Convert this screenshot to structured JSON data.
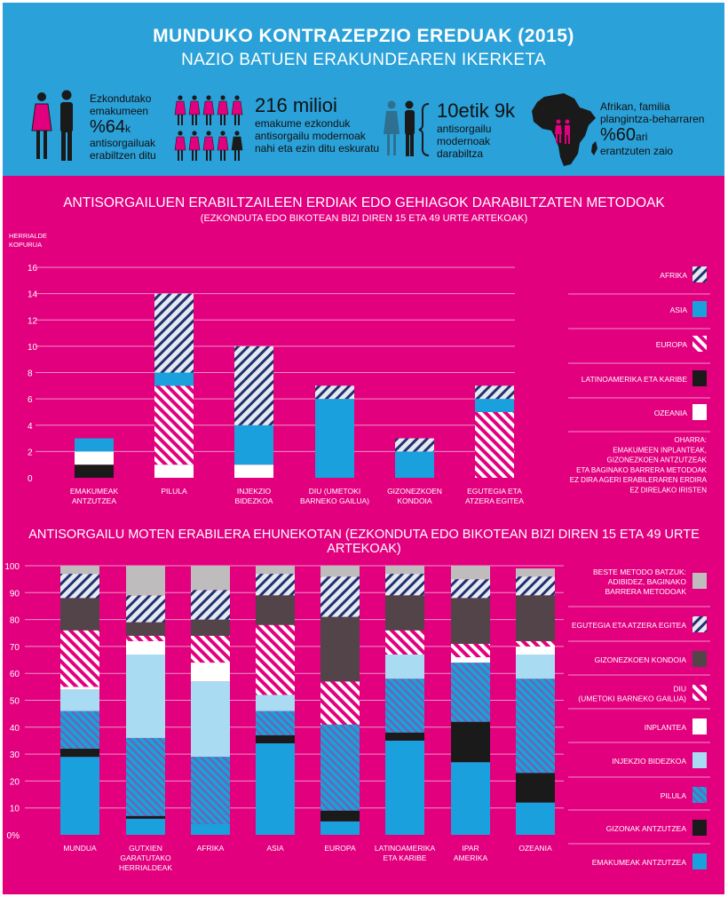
{
  "header": {
    "title": "MUNDUKO KONTRAZEPZIO EREDUAK (2015)",
    "subtitle": "NAZIO BATUEN ERAKUNDEAREN IKERKETA"
  },
  "stats": [
    {
      "lines_before": [
        "Ezkondutako",
        "emakumeen"
      ],
      "big": "%64",
      "suffix": "k",
      "lines_after": [
        "antisorgailuak",
        "erabiltzen ditu"
      ]
    },
    {
      "big": "216 milioi",
      "lines_after": [
        "emakume ezkonduk",
        "antisorgailu modernoak",
        "nahi eta ezin ditu eskuratu"
      ]
    },
    {
      "big": "10etik 9k",
      "lines_after": [
        "antisorgailu",
        "modernoak",
        "darabiltza"
      ]
    },
    {
      "lines_before": [
        "Afrikan, familia",
        "plangintza-beharraren"
      ],
      "big": "%60",
      "suffix": "ari",
      "lines_after": [
        "erantzuten zaio"
      ]
    }
  ],
  "colors": {
    "header_bg": "#2aa1d9",
    "section_bg": "#e3007f",
    "blue": "#1aa0dc",
    "light_blue": "#a9dbf2",
    "dark_gray": "#524449",
    "light_gray": "#bfbcbe",
    "black": "#1a1a1a",
    "white": "#ffffff",
    "hatch_pink": "#e3007f"
  },
  "chart_data": [
    {
      "type": "bar",
      "stacked": true,
      "title": "ANTISORGAILUEN ERABILTZAILEEN ERDIAK EDO GEHIAGOK DARABILTZATEN METODOAK",
      "subtitle": "(EZKONDUTA EDO BIKOTEAN BIZI DIREN 15 ETA 49 URTE ARTEKOAK)",
      "ylabel": [
        "HERRIALDE",
        "KOPURUA"
      ],
      "ylim": [
        0,
        16
      ],
      "yticks": [
        0,
        2,
        4,
        6,
        8,
        10,
        12,
        14,
        16
      ],
      "grid": true,
      "legend_position": "right",
      "categories": [
        [
          "EMAKUMEAK",
          "ANTZUTZEA"
        ],
        [
          "PILULA"
        ],
        [
          "INJEKZIO",
          "BIDEZKOA"
        ],
        [
          "DIU (UMETOKI",
          "BARNEKO GAILUA)"
        ],
        [
          "GIZONEZKOEN",
          "KONDOIA"
        ],
        [
          "EGUTEGIA ETA",
          "ATZERA EGITEA"
        ]
      ],
      "series": [
        {
          "name": "LATINOAMERIKA ETA KARIBE",
          "pattern": "black",
          "values": [
            1,
            0,
            0,
            0,
            0,
            0
          ]
        },
        {
          "name": "OZEANIA",
          "pattern": "white",
          "values": [
            1,
            1,
            1,
            0,
            0,
            0
          ]
        },
        {
          "name": "EUROPA",
          "pattern": "hatch_pink",
          "values": [
            0,
            6,
            0,
            0,
            0,
            5
          ]
        },
        {
          "name": "ASIA",
          "pattern": "blue",
          "values": [
            1,
            1,
            3,
            6,
            2,
            1
          ]
        },
        {
          "name": "AFRIKA",
          "pattern": "hatch_navy",
          "values": [
            0,
            6,
            6,
            1,
            1,
            1
          ]
        }
      ],
      "legend_order": [
        "AFRIKA",
        "ASIA",
        "EUROPA",
        "LATINOAMERIKA ETA KARIBE",
        "OZEANIA"
      ],
      "note": [
        "OHARRA:",
        "EMAKUMEEN INPLANTEAK,",
        "GIZONEZKOEN ANTZUTZEAK",
        "ETA BAGINAKO BARRERA METODOAK",
        "EZ DIRA AGERI ERABILERAREN ERDIRA",
        "EZ DIRELAKO IRISTEN"
      ]
    },
    {
      "type": "bar",
      "stacked": true,
      "title": "ANTISORGAILU MOTEN ERABILERA EHUNEKOTAN",
      "subtitle": "(EZKONDUTA EDO BIKOTEAN BIZI DIREN 15 ETA 49 URTE ARTEKOAK)",
      "ylim": [
        0,
        100
      ],
      "yticks": [
        0,
        10,
        20,
        30,
        40,
        50,
        60,
        70,
        80,
        90,
        100
      ],
      "ytick_labels": [
        "0%",
        "10",
        "20",
        "30",
        "40",
        "50",
        "60",
        "70",
        "80",
        "90",
        "100"
      ],
      "grid": true,
      "legend_position": "right",
      "categories": [
        [
          "MUNDUA"
        ],
        [
          "GUTXIEN",
          "GARATUTAKO",
          "HERRIALDEAK"
        ],
        [
          "AFRIKA"
        ],
        [
          "ASIA"
        ],
        [
          "EUROPA"
        ],
        [
          "LATINOAMERIKA",
          "ETA KARIBE"
        ],
        [
          "IPAR",
          "AMERIKA"
        ],
        [
          "OZEANIA"
        ]
      ],
      "series": [
        {
          "name": "EMAKUMEAK ANTZUTZEA",
          "pattern": "blue",
          "values": [
            29,
            6,
            4,
            34,
            5,
            35,
            27,
            12
          ]
        },
        {
          "name": "GIZONAK ANTZUTZEA",
          "pattern": "black",
          "values": [
            3,
            1,
            0,
            3,
            4,
            3,
            15,
            11
          ]
        },
        {
          "name": "PILULA",
          "pattern": "hatch_blue",
          "values": [
            14,
            29,
            25,
            9,
            32,
            20,
            22,
            35
          ]
        },
        {
          "name": "INJEKZIO BIDEZKOA",
          "pattern": "light_blue",
          "values": [
            8,
            31,
            28,
            6,
            0,
            9,
            0,
            9
          ]
        },
        {
          "name": "INPLANTEA",
          "pattern": "white",
          "values": [
            1,
            5,
            7,
            0,
            0,
            0,
            2,
            3
          ]
        },
        {
          "name": "DIU (UMETOKI BARNEKO GAILUA)",
          "pattern": "hatch_pink",
          "values": [
            21,
            2,
            10,
            26,
            16,
            9,
            5,
            2
          ]
        },
        {
          "name": "GIZONEZKOEN KONDOIA",
          "pattern": "dark_gray",
          "values": [
            12,
            5,
            6,
            11,
            24,
            13,
            17,
            17
          ]
        },
        {
          "name": "EGUTEGIA ETA ATZERA EGITEA",
          "pattern": "hatch_navy",
          "values": [
            9,
            10,
            11,
            8,
            15,
            8,
            7,
            7
          ]
        },
        {
          "name": "BESTE METODO BATZUK: ADIBIDEZ, BAGINAKO BARRERA METODOAK",
          "pattern": "light_gray",
          "values": [
            3,
            11,
            9,
            3,
            4,
            3,
            5,
            3
          ]
        }
      ],
      "legend_entries": [
        {
          "lines": [
            "BESTE METODO BATZUK:",
            "ADIBIDEZ, BAGINAKO",
            "BARRERA METODOAK"
          ],
          "pattern": "light_gray"
        },
        {
          "lines": [
            "EGUTEGIA ETA ATZERA EGITEA"
          ],
          "pattern": "hatch_navy"
        },
        {
          "lines": [
            "GIZONEZKOEN KONDOIA"
          ],
          "pattern": "dark_gray"
        },
        {
          "lines": [
            "DIU",
            "(UMETOKI BARNEKO GAILUA)"
          ],
          "pattern": "hatch_pink"
        },
        {
          "lines": [
            "INPLANTEA"
          ],
          "pattern": "white"
        },
        {
          "lines": [
            "INJEKZIO BIDEZKOA"
          ],
          "pattern": "light_blue"
        },
        {
          "lines": [
            "PILULA"
          ],
          "pattern": "hatch_blue"
        },
        {
          "lines": [
            "GIZONAK ANTZUTZEA"
          ],
          "pattern": "black"
        },
        {
          "lines": [
            "EMAKUMEAK ANTZUTZEA"
          ],
          "pattern": "blue"
        }
      ]
    }
  ]
}
